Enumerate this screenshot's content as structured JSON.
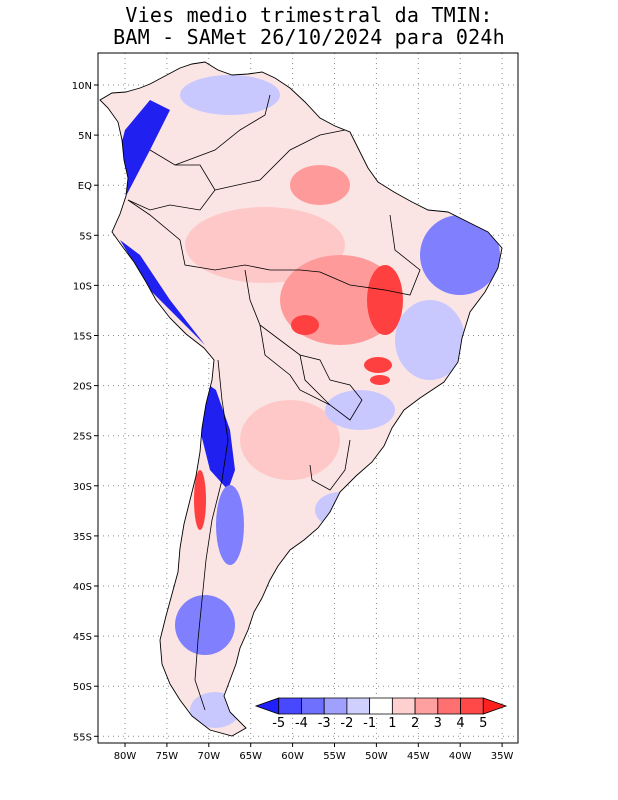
{
  "title": {
    "line1": "Vies medio trimestral da TMIN:",
    "line2": "BAM - SAMet 26/10/2024  para 024h"
  },
  "lat_ticks": [
    "10N",
    "5N",
    "EQ",
    "5S",
    "10S",
    "15S",
    "20S",
    "25S",
    "30S",
    "35S",
    "40S",
    "45S",
    "50S",
    "55S"
  ],
  "lon_ticks": [
    "80W",
    "75W",
    "70W",
    "65W",
    "60W",
    "55W",
    "50W",
    "45W",
    "40W",
    "35W"
  ],
  "colorbar": {
    "labels": [
      "-5",
      "-4",
      "-3",
      "-2",
      "-1",
      "1",
      "2",
      "3",
      "4",
      "5"
    ],
    "colors": [
      "#2020ff",
      "#4848ff",
      "#7070ff",
      "#a0a0ff",
      "#d0d0ff",
      "#ffffff",
      "#ffd0d0",
      "#ffa0a0",
      "#ff7070",
      "#ff4848",
      "#ff2020"
    ]
  },
  "map_colors": {
    "land_base": "#fbe4e4",
    "warm_light": "#ffc8c8",
    "warm_mid": "#ff9a9a",
    "warm_strong": "#ff4040",
    "cold_light": "#c8c8ff",
    "cold_mid": "#8080ff",
    "cold_strong": "#2020f0"
  }
}
